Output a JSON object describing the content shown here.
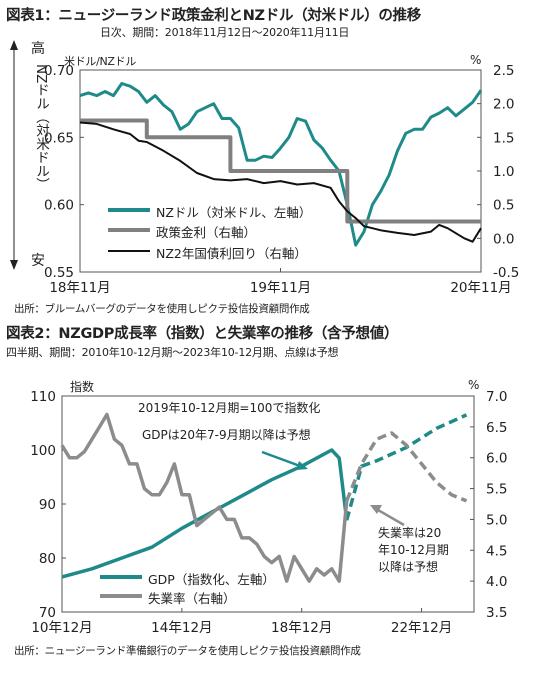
{
  "chart1": {
    "title": "図表1：ニュージーランド政策金利とNZドル（対米ドル）の推移",
    "subtitle": "日次、期間：2018年11月12日～2020年11月11日",
    "left_axis_title": "米ドル/NZドル",
    "right_axis_title": "%",
    "side_label_high": "高",
    "side_label_low": "安",
    "side_label_vertical": "NZドル（対米ドル）",
    "source": "出所：ブルームバーグのデータを使用しピクテ投信投資顧問作成",
    "colors": {
      "nzd": "#1f8a8a",
      "policy": "#808080",
      "bond": "#111111"
    },
    "chart_data": {
      "type": "line",
      "x_ticks": [
        "18年11月",
        "19年11月",
        "20年11月"
      ],
      "y_left_ticks": [
        "0.70",
        "0.65",
        "0.60",
        "0.55"
      ],
      "y_left_range": [
        0.55,
        0.7
      ],
      "y_right_ticks": [
        "2.5",
        "2.0",
        "1.5",
        "1.0",
        "0.5",
        "0.0",
        "-0.5"
      ],
      "y_right_range": [
        -0.5,
        2.5
      ],
      "series": [
        {
          "name": "NZドル（対米ドル、左軸）",
          "axis": "left",
          "x": [
            0,
            0.5,
            1,
            1.5,
            2,
            2.5,
            3,
            3.5,
            4,
            4.5,
            5,
            5.5,
            6,
            6.5,
            7,
            7.5,
            8,
            8.5,
            9,
            9.5,
            10,
            10.5,
            11,
            11.5,
            12,
            12.5,
            13,
            13.5,
            14,
            14.5,
            15,
            15.5,
            16,
            16.5,
            17,
            17.5,
            18,
            18.5,
            19,
            19.5,
            20,
            20.5,
            21,
            21.5,
            22,
            22.5,
            23,
            23.5,
            24
          ],
          "values": [
            0.681,
            0.683,
            0.681,
            0.684,
            0.681,
            0.69,
            0.688,
            0.684,
            0.676,
            0.681,
            0.674,
            0.669,
            0.656,
            0.66,
            0.669,
            0.672,
            0.675,
            0.664,
            0.664,
            0.657,
            0.633,
            0.633,
            0.636,
            0.635,
            0.642,
            0.65,
            0.664,
            0.662,
            0.648,
            0.642,
            0.633,
            0.625,
            0.6,
            0.57,
            0.58,
            0.6,
            0.61,
            0.622,
            0.64,
            0.653,
            0.656,
            0.656,
            0.665,
            0.668,
            0.672,
            0.666,
            0.671,
            0.676,
            0.685
          ]
        },
        {
          "name": "政策金利（右軸）",
          "axis": "right",
          "x": [
            0,
            4,
            4,
            9,
            9,
            16,
            16,
            16.5,
            16.5,
            24
          ],
          "values": [
            1.75,
            1.75,
            1.5,
            1.5,
            1.0,
            1.0,
            0.25,
            0.25,
            0.25,
            0.25
          ]
        },
        {
          "name": "NZ2年国債利回り（右軸）",
          "axis": "right",
          "x": [
            0,
            1,
            2,
            3,
            3.5,
            4,
            5,
            6,
            7,
            8,
            9,
            10,
            11,
            12,
            13,
            14,
            15,
            15.5,
            16,
            16.5,
            17,
            17.5,
            18,
            19,
            20,
            21,
            21.5,
            22,
            23,
            23.5,
            24
          ],
          "values": [
            1.72,
            1.7,
            1.62,
            1.55,
            1.45,
            1.43,
            1.3,
            1.15,
            0.97,
            0.88,
            0.86,
            0.88,
            0.82,
            0.85,
            0.8,
            0.82,
            0.75,
            0.55,
            0.4,
            0.3,
            0.18,
            0.15,
            0.12,
            0.08,
            0.05,
            0.1,
            0.2,
            0.15,
            0.0,
            -0.05,
            0.15
          ]
        }
      ]
    }
  },
  "chart2": {
    "title": "図表2：NZGDP成長率（指数）と失業率の推移（含予想値）",
    "subtitle": "四半期、期間：2010年10-12月期～2023年10-12月期、点線は予想",
    "left_axis_title": "指数",
    "right_axis_title": "%",
    "note_index": "2019年10-12月期=100で指数化",
    "note_gdp": "GDPは20年7-9月期以降は予想",
    "note_unemp": [
      "失業率は20",
      "年10-12月期",
      "以降は予想"
    ],
    "source": "出所：ニュージーランド準備銀行のデータを使用しピクテ投信投資顧問作成",
    "colors": {
      "gdp": "#1f8a8a",
      "unemp": "#8c8c8c"
    },
    "chart_data": {
      "type": "line",
      "x_ticks": [
        "10年12月",
        "14年12月",
        "18年12月",
        "22年12月"
      ],
      "y_left_ticks": [
        "110",
        "100",
        "90",
        "80",
        "70"
      ],
      "y_left_range": [
        70,
        110
      ],
      "y_right_ticks": [
        "7.0",
        "6.5",
        "6.0",
        "5.5",
        "5.0",
        "4.5",
        "4.0",
        "3.5"
      ],
      "y_right_range": [
        3.5,
        7.0
      ],
      "series": [
        {
          "name": "GDP（指数化、左軸）",
          "axis": "left",
          "x": [
            0,
            4,
            8,
            12,
            16,
            20,
            24,
            28,
            32,
            36,
            37,
            38
          ],
          "values": [
            76.5,
            78.0,
            80.0,
            82.0,
            85.5,
            88.5,
            91.5,
            94.5,
            97.0,
            100.0,
            98.5,
            87.0
          ]
        },
        {
          "name": "GDP予想",
          "axis": "left",
          "style": "dashed",
          "x": [
            38,
            40,
            42,
            46,
            50,
            54
          ],
          "values": [
            87.0,
            97.0,
            98.0,
            100.5,
            104.0,
            106.5
          ]
        },
        {
          "name": "失業率（右軸）",
          "axis": "right",
          "x": [
            0,
            1,
            2,
            3,
            4,
            5,
            6,
            7,
            8,
            9,
            10,
            11,
            12,
            13,
            14,
            15,
            16,
            17,
            18,
            19,
            20,
            21,
            22,
            23,
            24,
            25,
            26,
            27,
            28,
            29,
            30,
            31,
            32,
            33,
            34,
            35,
            36,
            37,
            38
          ],
          "values": [
            6.2,
            6.0,
            6.0,
            6.1,
            6.3,
            6.5,
            6.7,
            6.3,
            6.2,
            5.9,
            5.9,
            5.5,
            5.4,
            5.4,
            5.6,
            5.9,
            5.4,
            5.4,
            4.9,
            5.0,
            5.1,
            5.2,
            5.0,
            5.0,
            4.7,
            4.7,
            4.6,
            4.4,
            4.3,
            4.4,
            4.0,
            4.4,
            4.2,
            4.0,
            4.2,
            4.1,
            4.2,
            4.0,
            5.3
          ]
        },
        {
          "name": "失業率予想",
          "axis": "right",
          "style": "dashed",
          "x": [
            38,
            40,
            42,
            44,
            46,
            48,
            50,
            52,
            54
          ],
          "values": [
            5.3,
            5.9,
            6.3,
            6.4,
            6.2,
            5.9,
            5.6,
            5.4,
            5.3
          ]
        }
      ]
    }
  }
}
